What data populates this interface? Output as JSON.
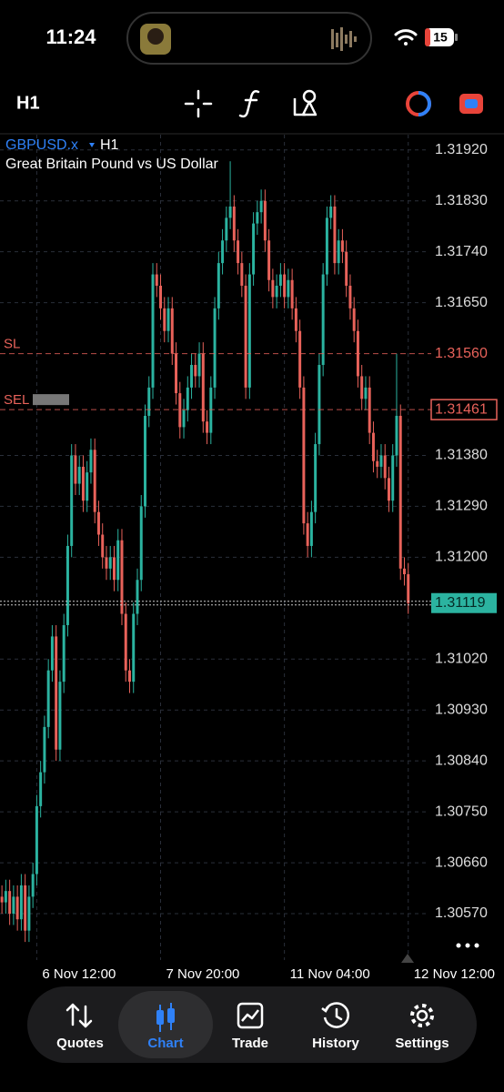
{
  "status_bar": {
    "time": "11:24",
    "battery": "15"
  },
  "toolbar": {
    "timeframe": "H1"
  },
  "chart_data": {
    "type": "candlestick",
    "title": "GBPUSD.x",
    "timeframe": "H1",
    "subtitle": "Great Britain Pound vs US Dollar",
    "up_color": "#2bb3a0",
    "down_color": "#e8625a",
    "open": [
      1.306,
      1.3059,
      1.3061,
      1.3057,
      1.306,
      1.3056,
      1.3062,
      1.3054,
      1.306,
      1.3064,
      1.3076,
      1.3082,
      1.309,
      1.31,
      1.3106,
      1.3086,
      1.3098,
      1.3108,
      1.3122,
      1.3138,
      1.3133,
      1.3136,
      1.313,
      1.3135,
      1.3139,
      1.3128,
      1.3124,
      1.312,
      1.3118,
      1.312,
      1.3116,
      1.3123,
      1.311,
      1.31,
      1.3098,
      1.311,
      1.3116,
      1.3129,
      1.3145,
      1.315,
      1.317,
      1.3168,
      1.3164,
      1.316,
      1.3164,
      1.3156,
      1.3149,
      1.3143,
      1.3146,
      1.315,
      1.3154,
      1.3152,
      1.3156,
      1.3144,
      1.3142,
      1.315,
      1.3164,
      1.3172,
      1.3176,
      1.318,
      1.3182,
      1.3176,
      1.3172,
      1.3168,
      1.315,
      1.317,
      1.3179,
      1.3181,
      1.3183,
      1.3176,
      1.3169,
      1.3166,
      1.3168,
      1.317,
      1.3166,
      1.3169,
      1.3164,
      1.316,
      1.315,
      1.3126,
      1.3122,
      1.3128,
      1.314,
      1.3154,
      1.317,
      1.318,
      1.3182,
      1.3172,
      1.3176,
      1.3174,
      1.3168,
      1.3164,
      1.316,
      1.3152,
      1.3148,
      1.315,
      1.3142,
      1.3137,
      1.3136,
      1.3138,
      1.3134,
      1.313,
      1.3138,
      1.3145,
      1.3118,
      1.3117
    ],
    "high": [
      1.3062,
      1.3063,
      1.3063,
      1.3062,
      1.3062,
      1.3064,
      1.3064,
      1.3062,
      1.3066,
      1.3078,
      1.3084,
      1.3092,
      1.3102,
      1.3108,
      1.3108,
      1.31,
      1.311,
      1.3124,
      1.314,
      1.314,
      1.3138,
      1.3138,
      1.3137,
      1.3141,
      1.3141,
      1.313,
      1.3126,
      1.3122,
      1.3122,
      1.3122,
      1.3125,
      1.3125,
      1.3112,
      1.3102,
      1.3112,
      1.3118,
      1.3131,
      1.3147,
      1.3152,
      1.3172,
      1.3172,
      1.317,
      1.3166,
      1.3166,
      1.3166,
      1.3158,
      1.3151,
      1.3148,
      1.3152,
      1.3156,
      1.3156,
      1.3158,
      1.3158,
      1.3146,
      1.3152,
      1.3166,
      1.3174,
      1.3178,
      1.3182,
      1.319,
      1.3184,
      1.3178,
      1.3174,
      1.317,
      1.3172,
      1.3181,
      1.3183,
      1.3185,
      1.3185,
      1.3178,
      1.3171,
      1.317,
      1.3172,
      1.3172,
      1.3171,
      1.3171,
      1.3166,
      1.3162,
      1.3152,
      1.3128,
      1.313,
      1.3142,
      1.3156,
      1.3172,
      1.3182,
      1.3184,
      1.3184,
      1.3178,
      1.3178,
      1.3176,
      1.317,
      1.3166,
      1.3162,
      1.3154,
      1.3152,
      1.3152,
      1.3144,
      1.3139,
      1.314,
      1.314,
      1.3136,
      1.314,
      1.3156,
      1.3147,
      1.312,
      1.3119
    ],
    "low": [
      1.3057,
      1.3057,
      1.3055,
      1.3055,
      1.3054,
      1.3054,
      1.3052,
      1.3052,
      1.3058,
      1.3062,
      1.3074,
      1.308,
      1.3088,
      1.3098,
      1.3084,
      1.3084,
      1.3096,
      1.3106,
      1.312,
      1.3131,
      1.3131,
      1.3128,
      1.3128,
      1.3133,
      1.3126,
      1.3122,
      1.3118,
      1.3116,
      1.3116,
      1.3114,
      1.3114,
      1.3108,
      1.3098,
      1.3096,
      1.3096,
      1.3108,
      1.3114,
      1.3127,
      1.3143,
      1.3148,
      1.3166,
      1.3162,
      1.3158,
      1.3158,
      1.3154,
      1.3147,
      1.3141,
      1.3141,
      1.3144,
      1.3148,
      1.315,
      1.315,
      1.3142,
      1.314,
      1.314,
      1.3148,
      1.3162,
      1.317,
      1.3174,
      1.3178,
      1.3174,
      1.317,
      1.3166,
      1.3148,
      1.3148,
      1.3168,
      1.3177,
      1.3179,
      1.3174,
      1.3167,
      1.3164,
      1.3164,
      1.3166,
      1.3164,
      1.3164,
      1.3162,
      1.3158,
      1.3148,
      1.3124,
      1.312,
      1.312,
      1.3126,
      1.3138,
      1.3152,
      1.3168,
      1.3178,
      1.317,
      1.317,
      1.3172,
      1.3166,
      1.3162,
      1.3158,
      1.315,
      1.3146,
      1.3146,
      1.314,
      1.3135,
      1.3134,
      1.3134,
      1.3132,
      1.3128,
      1.3128,
      1.3136,
      1.3116,
      1.3115,
      1.311
    ],
    "close": [
      1.3059,
      1.3061,
      1.3057,
      1.306,
      1.3056,
      1.3062,
      1.3054,
      1.306,
      1.3064,
      1.3076,
      1.3082,
      1.309,
      1.31,
      1.3106,
      1.3086,
      1.3098,
      1.3108,
      1.3122,
      1.3138,
      1.3133,
      1.3136,
      1.313,
      1.3135,
      1.3139,
      1.3128,
      1.3124,
      1.312,
      1.3118,
      1.312,
      1.3116,
      1.3123,
      1.311,
      1.31,
      1.3098,
      1.311,
      1.3116,
      1.3129,
      1.3145,
      1.315,
      1.317,
      1.3168,
      1.3164,
      1.316,
      1.3164,
      1.3156,
      1.3149,
      1.3143,
      1.3146,
      1.315,
      1.3154,
      1.3152,
      1.3156,
      1.3144,
      1.3142,
      1.315,
      1.3164,
      1.3172,
      1.3176,
      1.318,
      1.3182,
      1.3176,
      1.3172,
      1.3168,
      1.315,
      1.317,
      1.3179,
      1.3181,
      1.3183,
      1.3176,
      1.3169,
      1.3166,
      1.3168,
      1.317,
      1.3166,
      1.3169,
      1.3164,
      1.316,
      1.315,
      1.3126,
      1.3122,
      1.3128,
      1.314,
      1.3154,
      1.317,
      1.318,
      1.3182,
      1.3172,
      1.3176,
      1.3174,
      1.3168,
      1.3164,
      1.316,
      1.3152,
      1.3148,
      1.315,
      1.3142,
      1.3137,
      1.3136,
      1.3138,
      1.3134,
      1.313,
      1.3138,
      1.3145,
      1.3118,
      1.3117,
      1.31119
    ],
    "xlim": [
      -0.5,
      110
    ],
    "xticks": [
      {
        "value": 9,
        "label": "6 Nov 12:00"
      },
      {
        "value": 41,
        "label": "7 Nov 20:00"
      },
      {
        "value": 73,
        "label": "11 Nov 04:00"
      },
      {
        "value": 105,
        "label": "12 Nov 12:00"
      }
    ],
    "ylim": [
      1.30488,
      1.31947
    ],
    "yticks": [
      {
        "value": 1.3192,
        "label": "1.31920"
      },
      {
        "value": 1.3183,
        "label": "1.31830"
      },
      {
        "value": 1.3174,
        "label": "1.31740"
      },
      {
        "value": 1.3165,
        "label": "1.31650"
      },
      {
        "value": 1.3138,
        "label": "1.31380"
      },
      {
        "value": 1.3129,
        "label": "1.31290"
      },
      {
        "value": 1.312,
        "label": "1.31200"
      },
      {
        "value": 1.3102,
        "label": "1.31020"
      },
      {
        "value": 1.3093,
        "label": "1.30930"
      },
      {
        "value": 1.3084,
        "label": "1.30840"
      },
      {
        "value": 1.3075,
        "label": "1.30750"
      },
      {
        "value": 1.3066,
        "label": "1.30660"
      },
      {
        "value": 1.3057,
        "label": "1.30570"
      }
    ],
    "grid": true,
    "levels": [
      {
        "name": "SL",
        "value": 1.3156,
        "label": "1.31560",
        "color": "#e8625a"
      },
      {
        "name": "SEL",
        "value": 1.31461,
        "label": "1.31461",
        "color": "#e8625a"
      }
    ],
    "current_price": {
      "value": 1.31119,
      "label": "1.31119",
      "color": "#2bb3a0"
    }
  },
  "nav": {
    "items": [
      "Quotes",
      "Chart",
      "Trade",
      "History",
      "Settings"
    ],
    "active": 1
  }
}
